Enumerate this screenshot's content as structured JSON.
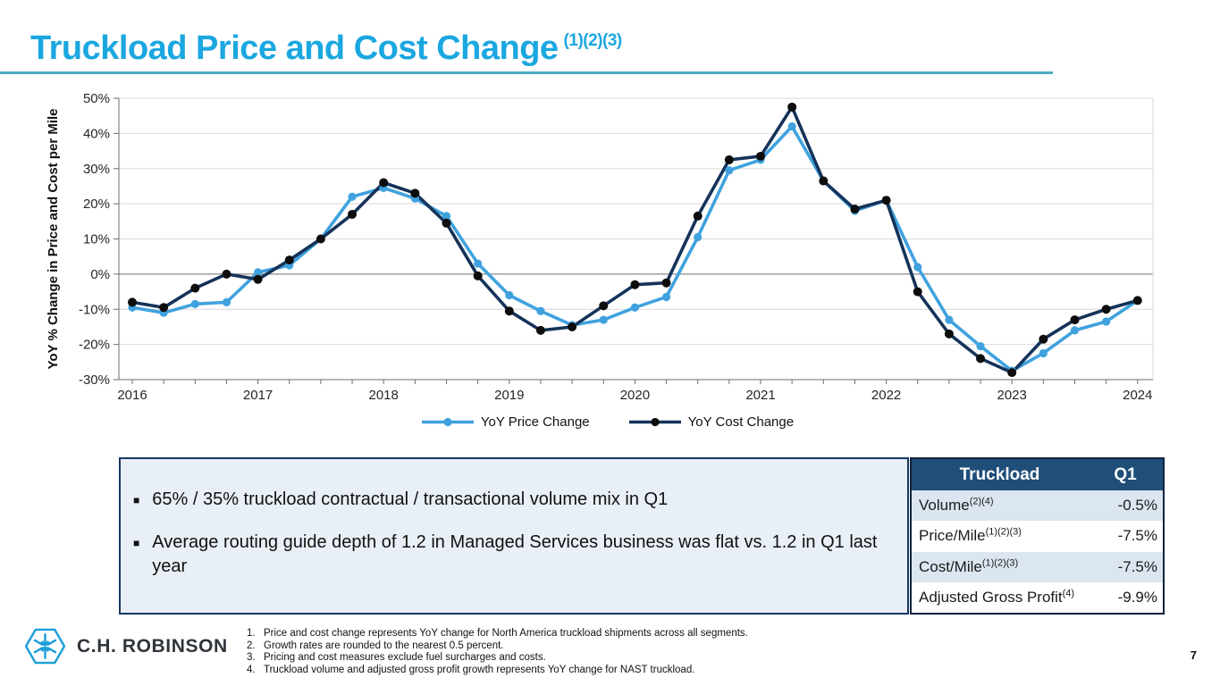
{
  "slide": {
    "title": "Truckload Price and Cost Change",
    "title_superscript": "(1)(2)(3)",
    "page_number": "7",
    "accent_color": "#1ba7e0",
    "rule_color": "#4bacc6"
  },
  "chart_data": {
    "type": "line",
    "title": "",
    "xlabel": "",
    "ylabel": "YoY % Change in Price and Cost per Mile",
    "ylim": [
      -30,
      50
    ],
    "ytick_step": 10,
    "ytick_suffix": "%",
    "grid": true,
    "legend_position": "bottom",
    "x_years": [
      "2016",
      "2017",
      "2018",
      "2019",
      "2020",
      "2021",
      "2022",
      "2023",
      "2024"
    ],
    "points_per_year": 4,
    "zero_line": true,
    "series": [
      {
        "name": "YoY Price Change",
        "color": "#3fa2de",
        "marker_color": "#3fa2de",
        "values": [
          -9.5,
          -11,
          -8.5,
          -8,
          0.5,
          2.5,
          10,
          22,
          24.5,
          21.5,
          16.5,
          3,
          -6,
          -10.5,
          -14.5,
          -13,
          -9.5,
          -6.5,
          10.5,
          29.5,
          32.5,
          42,
          26.5,
          18,
          21,
          2,
          -13,
          -20.5,
          -27.5,
          -22.5,
          -16,
          -13.5,
          -7.5
        ]
      },
      {
        "name": "YoY Cost Change",
        "color": "#15335a",
        "marker_color": "#0d0d0d",
        "values": [
          -8,
          -9.5,
          -4,
          0,
          -1.5,
          4,
          10,
          17,
          26,
          23,
          14.5,
          -0.5,
          -10.5,
          -16,
          -15,
          -9,
          -3,
          -2.5,
          16.5,
          32.5,
          33.5,
          47.5,
          26.5,
          18.5,
          21,
          -5,
          -17,
          -24,
          -28,
          -18.5,
          -13,
          -10,
          -7.5
        ]
      }
    ]
  },
  "callout_box": {
    "bullets": [
      "65% / 35% truckload contractual / transactional volume mix in Q1",
      "Average routing guide depth of 1.2 in Managed Services business was flat vs. 1.2 in Q1 last year"
    ]
  },
  "table": {
    "header": [
      "Truckload",
      "Q1"
    ],
    "header_bg": "#1f4e79",
    "alt_row_bg": "#dce6f1",
    "rows": [
      {
        "label": "Volume",
        "superscript": "(2)(4)",
        "value": "-0.5%"
      },
      {
        "label": "Price/Mile",
        "superscript": "(1)(2)(3)",
        "value": "-7.5%"
      },
      {
        "label": "Cost/Mile",
        "superscript": "(1)(2)(3)",
        "value": "-7.5%"
      },
      {
        "label": "Adjusted Gross Profit",
        "superscript": "(4)",
        "value": "-9.9%"
      }
    ]
  },
  "footnotes": [
    "Price and cost change represents YoY change for North America truckload shipments across all segments.",
    "Growth rates are rounded to the nearest 0.5 percent.",
    "Pricing and cost measures exclude fuel surcharges and costs.",
    "Truckload volume and adjusted gross profit growth represents YoY change for NAST truckload."
  ],
  "logo": {
    "text": "C.H. ROBINSON",
    "icon": "hexagon-arrows-icon",
    "icon_color": "#1d9fd8"
  }
}
